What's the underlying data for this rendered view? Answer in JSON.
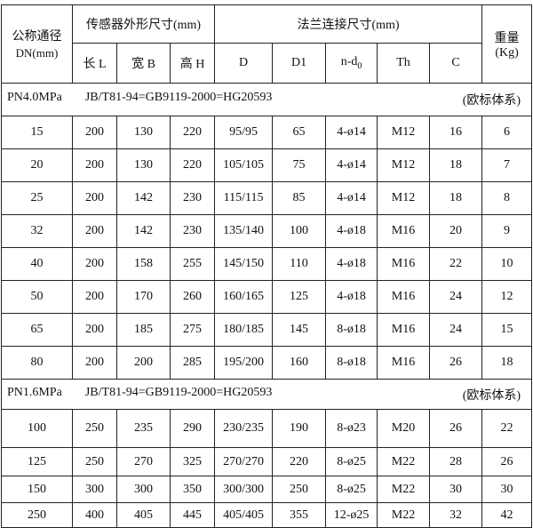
{
  "header": {
    "nominal": "公称通径",
    "nominal_unit": "DN(mm)",
    "sensor_group": "传感器外形尺寸(mm)",
    "flange_group": "法兰连接尺寸(mm)",
    "weight": "重量",
    "weight_unit": "(Kg)",
    "columns": [
      "长 L",
      "宽 B",
      "高 H",
      "D",
      "D1",
      "n-d",
      "Th",
      "C"
    ],
    "nd_sub": "0"
  },
  "sections": [
    {
      "pressure": "PN4.0MPa",
      "standard": "JB/T81-94=GB9119-2000=HG20593",
      "system": "(欧标体系)",
      "rows": [
        [
          "15",
          "200",
          "130",
          "220",
          "95/95",
          "65",
          "4-ø14",
          "M12",
          "16",
          "6"
        ],
        [
          "20",
          "200",
          "130",
          "220",
          "105/105",
          "75",
          "4-ø14",
          "M12",
          "18",
          "7"
        ],
        [
          "25",
          "200",
          "142",
          "230",
          "115/115",
          "85",
          "4-ø14",
          "M12",
          "18",
          "8"
        ],
        [
          "32",
          "200",
          "142",
          "230",
          "135/140",
          "100",
          "4-ø18",
          "M16",
          "20",
          "9"
        ],
        [
          "40",
          "200",
          "158",
          "255",
          "145/150",
          "110",
          "4-ø18",
          "M16",
          "22",
          "10"
        ],
        [
          "50",
          "200",
          "170",
          "260",
          "160/165",
          "125",
          "4-ø18",
          "M16",
          "24",
          "12"
        ],
        [
          "65",
          "200",
          "185",
          "275",
          "180/185",
          "145",
          "8-ø18",
          "M16",
          "24",
          "15"
        ],
        [
          "80",
          "200",
          "200",
          "285",
          "195/200",
          "160",
          "8-ø18",
          "M16",
          "26",
          "18"
        ]
      ]
    },
    {
      "pressure": "PN1.6MPa",
      "standard": "JB/T81-94=GB9119-2000=HG20593",
      "system": "(欧标体系)",
      "rows": [
        [
          "100",
          "250",
          "235",
          "290",
          "230/235",
          "190",
          "8-ø23",
          "M20",
          "26",
          "22"
        ],
        [
          "125",
          "250",
          "270",
          "325",
          "270/270",
          "220",
          "8-ø25",
          "M22",
          "28",
          "26"
        ],
        [
          "150",
          "300",
          "300",
          "350",
          "300/300",
          "250",
          "8-ø25",
          "M22",
          "30",
          "30"
        ],
        [
          "250",
          "400",
          "405",
          "445",
          "405/405",
          "355",
          "12-ø25",
          "M22",
          "32",
          "42"
        ]
      ]
    }
  ]
}
